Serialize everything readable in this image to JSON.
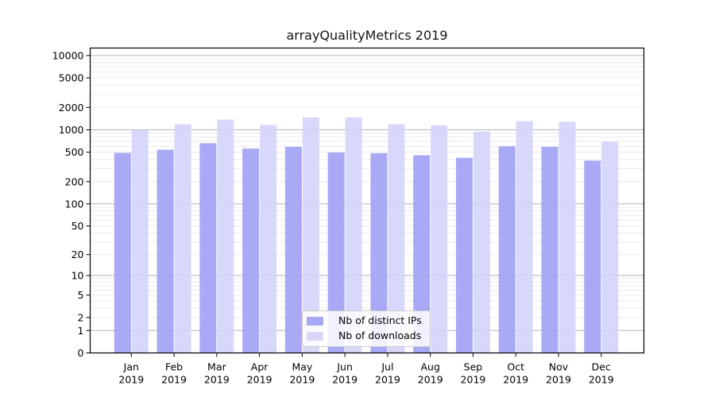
{
  "title": "arrayQualityMetrics 2019",
  "chart_data": {
    "type": "bar",
    "title": "arrayQualityMetrics 2019",
    "categories": [
      "Jan 2019",
      "Feb 2019",
      "Mar 2019",
      "Apr 2019",
      "May 2019",
      "Jun 2019",
      "Jul 2019",
      "Aug 2019",
      "Sep 2019",
      "Oct 2019",
      "Nov 2019",
      "Dec 2019"
    ],
    "months": [
      "Jan",
      "Feb",
      "Mar",
      "Apr",
      "May",
      "Jun",
      "Jul",
      "Aug",
      "Sep",
      "Oct",
      "Nov",
      "Dec"
    ],
    "year": "2019",
    "series": [
      {
        "name": "Nb of distinct IPs",
        "color": "#a0a0f5",
        "values": [
          490,
          540,
          660,
          560,
          590,
          495,
          485,
          455,
          420,
          600,
          590,
          385
        ]
      },
      {
        "name": "Nb of downloads",
        "color": "#d4d4fa",
        "values": [
          1000,
          1190,
          1375,
          1165,
          1470,
          1470,
          1190,
          1150,
          950,
          1310,
          1290,
          690
        ]
      }
    ],
    "yscale": "symlog",
    "ylim": [
      0,
      12600
    ],
    "y_ticks": [
      0,
      1,
      2,
      5,
      10,
      20,
      50,
      100,
      200,
      500,
      1000,
      2000,
      5000,
      10000
    ],
    "grid": true,
    "legend_position": "bottom-center",
    "bar_opacity": 0.9,
    "colors": {
      "major_grid": "#b3b3b3",
      "minor_grid": "#e9e9e9",
      "axis": "#000000",
      "text": "#000000"
    }
  }
}
